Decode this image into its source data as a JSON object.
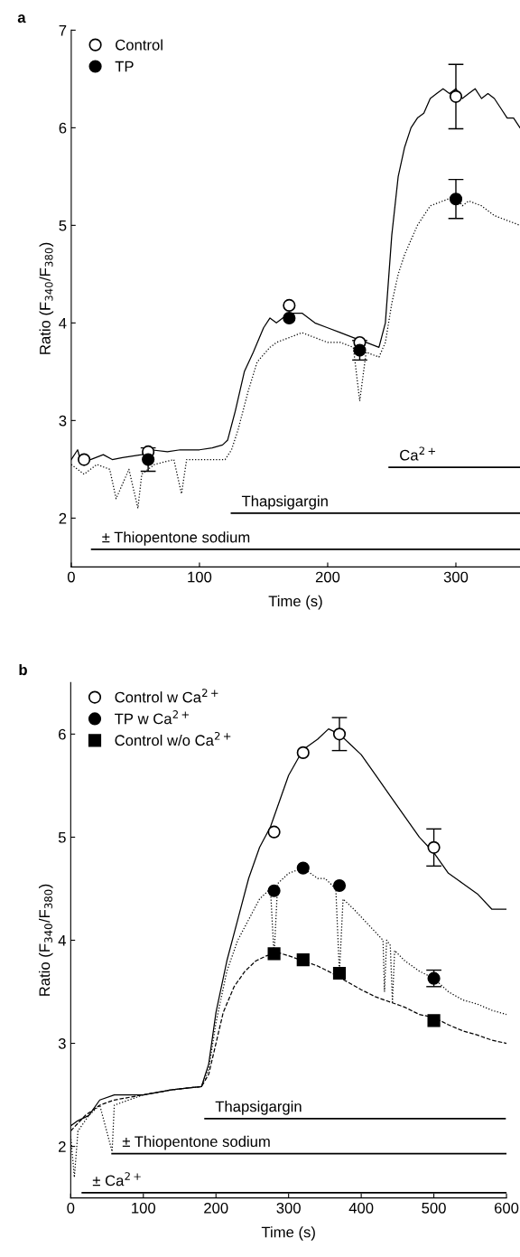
{
  "chart_data": [
    {
      "type": "line",
      "title": "a",
      "xlabel": "Time (s)",
      "ylabel": "Ratio (F$_{340}$/F$_{380}$)",
      "xlim": [
        0,
        350
      ],
      "xticks": [
        0,
        100,
        200,
        300
      ],
      "ylim": [
        1.5,
        7
      ],
      "yticks": [
        2,
        3,
        4,
        5,
        6,
        7
      ],
      "grid": false,
      "legend": "top left",
      "series": [
        {
          "line_style": "solid",
          "color": "#000000",
          "x": [
            0,
            5,
            8,
            15,
            25,
            32,
            40,
            55,
            62,
            75,
            85,
            100,
            110,
            118,
            122,
            128,
            135,
            142,
            150,
            155,
            160,
            170,
            180,
            190,
            200,
            210,
            220,
            230,
            240,
            245,
            250,
            255,
            260,
            265,
            270,
            275,
            280,
            285,
            290,
            295,
            300,
            305,
            310,
            315,
            320,
            325,
            330,
            335,
            340,
            345,
            350
          ],
          "values": [
            2.6,
            2.7,
            2.55,
            2.6,
            2.65,
            2.6,
            2.62,
            2.65,
            2.7,
            2.68,
            2.7,
            2.7,
            2.72,
            2.75,
            2.8,
            3.1,
            3.5,
            3.7,
            3.95,
            4.05,
            4.0,
            4.1,
            4.1,
            4.0,
            3.95,
            3.9,
            3.85,
            3.8,
            3.75,
            4.0,
            4.9,
            5.5,
            5.8,
            6.0,
            6.1,
            6.15,
            6.3,
            6.35,
            6.4,
            6.35,
            6.4,
            6.3,
            6.35,
            6.4,
            6.3,
            6.35,
            6.3,
            6.2,
            6.1,
            6.1,
            6.0
          ]
        },
        {
          "line_style": "dotted",
          "color": "#000000",
          "x": [
            0,
            5,
            10,
            20,
            30,
            35,
            45,
            52,
            55,
            65,
            80,
            86,
            90,
            100,
            110,
            120,
            125,
            130,
            138,
            145,
            155,
            160,
            170,
            180,
            190,
            200,
            210,
            220,
            225,
            230,
            240,
            245,
            250,
            255,
            260,
            265,
            270,
            275,
            280,
            290,
            300,
            305,
            310,
            320,
            330,
            340,
            350
          ],
          "values": [
            2.55,
            2.5,
            2.45,
            2.55,
            2.5,
            2.2,
            2.5,
            2.1,
            2.45,
            2.55,
            2.6,
            2.25,
            2.6,
            2.6,
            2.6,
            2.6,
            2.7,
            2.9,
            3.3,
            3.6,
            3.75,
            3.8,
            3.85,
            3.9,
            3.85,
            3.8,
            3.8,
            3.75,
            3.2,
            3.7,
            3.65,
            3.8,
            4.2,
            4.5,
            4.7,
            4.85,
            5.0,
            5.1,
            5.2,
            5.25,
            5.3,
            5.2,
            5.25,
            5.2,
            5.1,
            5.05,
            5.0
          ]
        },
        {
          "type": "scatter",
          "name": "Control",
          "color": "#ffffff",
          "marker": "circle",
          "x": [
            10,
            60,
            170,
            225,
            300
          ],
          "values": [
            2.6,
            2.68,
            4.18,
            3.8,
            6.32
          ],
          "errors": [
            null,
            null,
            null,
            null,
            0.33
          ]
        },
        {
          "type": "scatter",
          "name": "TP",
          "color": "#000000",
          "marker": "circle",
          "x": [
            60,
            170,
            225,
            300
          ],
          "values": [
            2.6,
            4.05,
            3.72,
            5.27
          ],
          "errors": [
            0.12,
            null,
            0.1,
            0.2
          ]
        },
        {
          "name": "± Thiopentone sodium",
          "line_style": "solid",
          "color": "#000000",
          "x": [
            16,
            350
          ],
          "values": [
            1.68,
            1.68
          ]
        },
        {
          "name": "Thapsigargin",
          "line_style": "solid",
          "color": "#000000",
          "x": [
            125,
            350
          ],
          "values": [
            2.05,
            2.05
          ]
        },
        {
          "name": "Ca$^{2+}$",
          "line_style": "solid",
          "color": "#000000",
          "x": [
            248,
            350
          ],
          "values": [
            2.52,
            2.52
          ]
        }
      ]
    },
    {
      "type": "line",
      "title": "b",
      "xlabel": "Time (s)",
      "ylabel": "Ratio (F$_{340}$/F$_{380}$)",
      "xlim": [
        0,
        600
      ],
      "xticks": [
        0,
        100,
        200,
        300,
        400,
        500,
        600
      ],
      "ylim": [
        1.5,
        6.5
      ],
      "yticks": [
        2,
        3,
        4,
        5,
        6
      ],
      "grid": false,
      "legend": "top left",
      "series": [
        {
          "line_style": "solid",
          "color": "#000000",
          "x": [
            0,
            10,
            25,
            40,
            60,
            100,
            140,
            180,
            190,
            200,
            215,
            230,
            245,
            260,
            275,
            290,
            300,
            320,
            340,
            355,
            370,
            385,
            400,
            420,
            440,
            460,
            480,
            500,
            520,
            540,
            560,
            580,
            600
          ],
          "values": [
            2.2,
            2.25,
            2.3,
            2.45,
            2.5,
            2.5,
            2.55,
            2.58,
            2.8,
            3.3,
            3.8,
            4.2,
            4.6,
            4.9,
            5.1,
            5.4,
            5.6,
            5.85,
            5.95,
            6.05,
            6.0,
            5.9,
            5.8,
            5.6,
            5.4,
            5.2,
            5.0,
            4.85,
            4.65,
            4.55,
            4.45,
            4.3,
            4.3
          ]
        },
        {
          "line_style": "dotted",
          "color": "#000000",
          "x": [
            0,
            5,
            10,
            25,
            40,
            57,
            60,
            80,
            100,
            140,
            180,
            190,
            200,
            215,
            230,
            245,
            260,
            275,
            280,
            285,
            300,
            320,
            340,
            350,
            365,
            370,
            375,
            390,
            410,
            430,
            432,
            435,
            440,
            443,
            446,
            460,
            480,
            500,
            520,
            540,
            560,
            580,
            600
          ],
          "values": [
            2.1,
            1.7,
            2.15,
            2.3,
            2.4,
            1.95,
            2.4,
            2.45,
            2.5,
            2.55,
            2.58,
            2.75,
            3.2,
            3.7,
            4.0,
            4.2,
            4.4,
            4.5,
            3.85,
            4.55,
            4.65,
            4.7,
            4.6,
            4.6,
            4.5,
            3.68,
            4.4,
            4.3,
            4.15,
            4.0,
            3.5,
            4.0,
            3.95,
            3.4,
            3.9,
            3.8,
            3.7,
            3.63,
            3.5,
            3.42,
            3.38,
            3.32,
            3.28
          ]
        },
        {
          "line_style": "dashed",
          "color": "#000000",
          "x": [
            0,
            20,
            40,
            60,
            100,
            140,
            180,
            190,
            200,
            210,
            225,
            240,
            255,
            270,
            285,
            300,
            320,
            340,
            360,
            380,
            400,
            420,
            440,
            460,
            480,
            500,
            520,
            540,
            560,
            580,
            600
          ],
          "values": [
            2.15,
            2.3,
            2.4,
            2.45,
            2.5,
            2.55,
            2.58,
            2.7,
            3.0,
            3.3,
            3.55,
            3.7,
            3.8,
            3.85,
            3.88,
            3.85,
            3.8,
            3.75,
            3.68,
            3.6,
            3.52,
            3.45,
            3.4,
            3.35,
            3.28,
            3.25,
            3.18,
            3.12,
            3.08,
            3.03,
            3.0
          ]
        },
        {
          "type": "scatter",
          "name": "Control w Ca$^{2+}$",
          "color": "#ffffff",
          "marker": "circle",
          "x": [
            280,
            320,
            370,
            500
          ],
          "values": [
            5.05,
            5.82,
            6.0,
            4.9
          ],
          "errors": [
            null,
            null,
            0.16,
            0.18
          ]
        },
        {
          "type": "scatter",
          "name": "TP w Ca$^{2+}$",
          "color": "#000000",
          "marker": "circle",
          "x": [
            280,
            320,
            370,
            500
          ],
          "values": [
            4.48,
            4.7,
            4.53,
            3.63
          ],
          "errors": [
            null,
            null,
            null,
            0.08
          ]
        },
        {
          "type": "scatter",
          "name": "Control w/o Ca$^{2+}$",
          "color": "#000000",
          "marker": "square",
          "x": [
            280,
            320,
            370,
            500
          ],
          "values": [
            3.87,
            3.81,
            3.68,
            3.22
          ],
          "errors": [
            null,
            null,
            null,
            null
          ]
        },
        {
          "name": "± Ca$^{2+}$",
          "line_style": "solid",
          "color": "#000000",
          "x": [
            16,
            600
          ],
          "values": [
            1.55,
            1.55
          ]
        },
        {
          "name": "± Thiopentone sodium",
          "line_style": "solid",
          "color": "#000000",
          "x": [
            57,
            600
          ],
          "values": [
            1.93,
            1.93
          ]
        },
        {
          "name": "Thapsigargin",
          "line_style": "solid",
          "color": "#000000",
          "x": [
            185,
            598
          ],
          "values": [
            2.27,
            2.27
          ]
        }
      ]
    }
  ]
}
